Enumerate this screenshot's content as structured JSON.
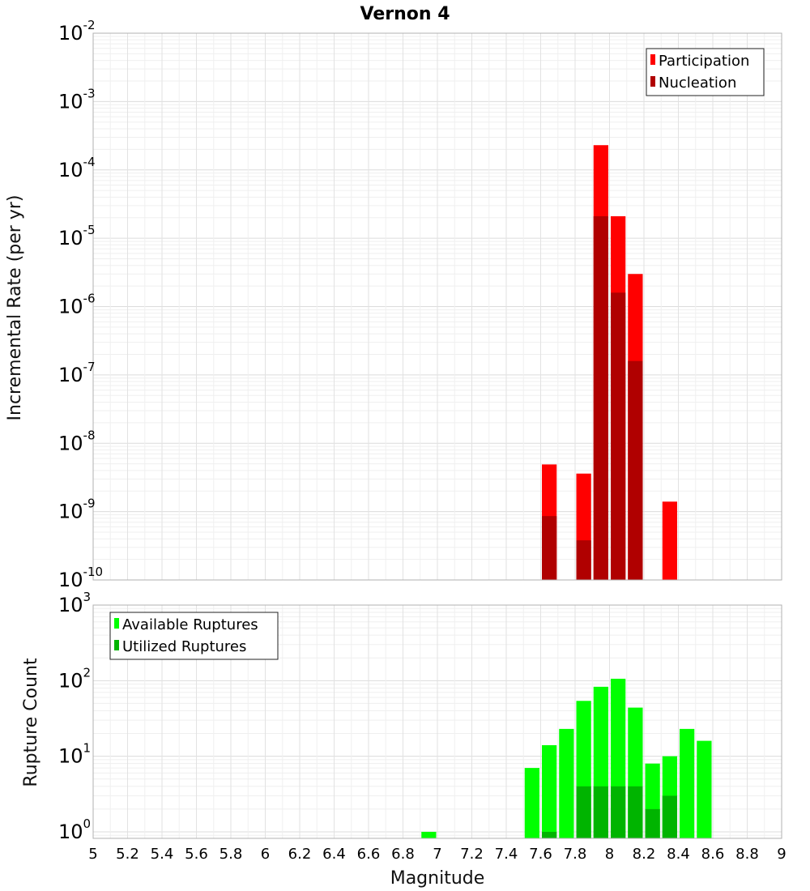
{
  "chart_data": [
    {
      "type": "bar",
      "title": "Vernon 4",
      "ylabel": "Incremental Rate (per yr)",
      "xlabel": "",
      "yscale": "log",
      "ylim": [
        1e-10,
        0.01
      ],
      "xlim": [
        5,
        9
      ],
      "bin_width": 0.1,
      "y_ticks": [
        {
          "base": "10",
          "exp": "-10"
        },
        {
          "base": "10",
          "exp": "-9"
        },
        {
          "base": "10",
          "exp": "-8"
        },
        {
          "base": "10",
          "exp": "-7"
        },
        {
          "base": "10",
          "exp": "-6"
        },
        {
          "base": "10",
          "exp": "-5"
        },
        {
          "base": "10",
          "exp": "-4"
        },
        {
          "base": "10",
          "exp": "-3"
        },
        {
          "base": "10",
          "exp": "-2"
        }
      ],
      "legend": {
        "position": "top-right",
        "entries": [
          "Participation",
          "Nucleation"
        ]
      },
      "series": [
        {
          "name": "Participation",
          "color": "#ff0000",
          "x": [
            7.65,
            7.85,
            7.95,
            8.05,
            8.15,
            8.35
          ],
          "values": [
            4.9e-09,
            3.6e-09,
            0.00023,
            2.1e-05,
            3e-06,
            1.4e-09
          ]
        },
        {
          "name": "Nucleation",
          "color": "#b00000",
          "x": [
            7.65,
            7.85,
            7.95,
            8.05,
            8.15
          ],
          "values": [
            8.6e-10,
            3.8e-10,
            2.1e-05,
            1.6e-06,
            1.6e-07
          ]
        }
      ]
    },
    {
      "type": "bar",
      "title": "",
      "ylabel": "Rupture Count",
      "xlabel": "Magnitude",
      "yscale": "log",
      "ylim": [
        0.82,
        1000
      ],
      "xlim": [
        5,
        9
      ],
      "bin_width": 0.1,
      "x_ticks": [
        "5",
        "5.2",
        "5.4",
        "5.6",
        "5.8",
        "6",
        "6.2",
        "6.4",
        "6.6",
        "6.8",
        "7",
        "7.2",
        "7.4",
        "7.6",
        "7.8",
        "8",
        "8.2",
        "8.4",
        "8.6",
        "8.8",
        "9"
      ],
      "y_ticks": [
        {
          "base": "10",
          "exp": "0"
        },
        {
          "base": "10",
          "exp": "1"
        },
        {
          "base": "10",
          "exp": "2"
        },
        {
          "base": "10",
          "exp": "3"
        }
      ],
      "legend": {
        "position": "top-left",
        "entries": [
          "Available Ruptures",
          "Utilized Ruptures"
        ]
      },
      "series": [
        {
          "name": "Available Ruptures",
          "color": "#00ff00",
          "x": [
            6.95,
            7.55,
            7.65,
            7.75,
            7.85,
            7.95,
            8.05,
            8.15,
            8.25,
            8.35,
            8.45,
            8.55
          ],
          "values": [
            1,
            7,
            14,
            23,
            54,
            83,
            106,
            44,
            8,
            10,
            23,
            16
          ]
        },
        {
          "name": "Utilized Ruptures",
          "color": "#00b400",
          "x": [
            7.65,
            7.85,
            7.95,
            8.05,
            8.15,
            8.25,
            8.35
          ],
          "values": [
            1,
            4,
            4,
            4,
            4,
            2,
            3
          ]
        }
      ]
    }
  ]
}
